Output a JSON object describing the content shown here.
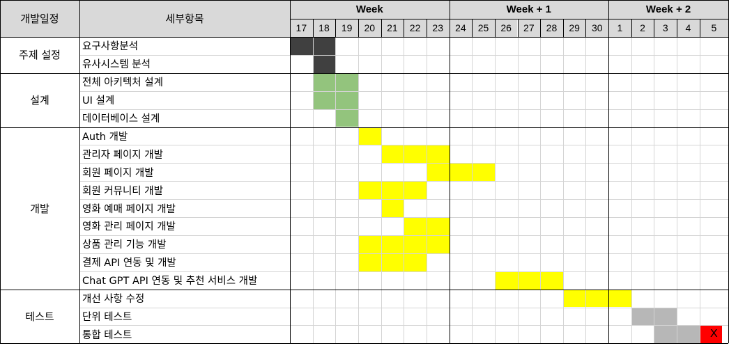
{
  "header": {
    "phase_label": "개발일정",
    "task_label": "세부항목",
    "weeks": [
      "Week",
      "Week + 1",
      "Week + 2"
    ],
    "days": [
      "17",
      "18",
      "19",
      "20",
      "21",
      "22",
      "23",
      "24",
      "25",
      "26",
      "27",
      "28",
      "29",
      "30",
      "1",
      "2",
      "3",
      "4",
      "5"
    ]
  },
  "colors": {
    "header_bg": "#d9d9d9",
    "grid": "#d4d4d4",
    "border": "#000000",
    "dark": "#404040",
    "green": "#93c47d",
    "yellow": "#ffff00",
    "gray": "#b7b7b7",
    "red": "#ff0000"
  },
  "phases": [
    {
      "label": "주제 설정",
      "tasks": [
        {
          "name": "요구사항분석",
          "bars": [
            {
              "start": 0,
              "end": 1,
              "color": "dark"
            }
          ]
        },
        {
          "name": "유사시스템 분석",
          "bars": [
            {
              "start": 1,
              "end": 1,
              "color": "dark"
            }
          ]
        }
      ]
    },
    {
      "label": "설계",
      "tasks": [
        {
          "name": "전체 아키텍처 설계",
          "bars": [
            {
              "start": 1,
              "end": 2,
              "color": "green"
            }
          ]
        },
        {
          "name": "UI 설계",
          "bars": [
            {
              "start": 1,
              "end": 2,
              "color": "green"
            }
          ]
        },
        {
          "name": "데이터베이스 설계",
          "bars": [
            {
              "start": 2,
              "end": 2,
              "color": "green"
            }
          ]
        }
      ]
    },
    {
      "label": "개발",
      "tasks": [
        {
          "name": "Auth 개발",
          "bars": [
            {
              "start": 3,
              "end": 3,
              "color": "yellow"
            }
          ]
        },
        {
          "name": "관리자 페이지 개발",
          "bars": [
            {
              "start": 4,
              "end": 6,
              "color": "yellow"
            }
          ]
        },
        {
          "name": "회원 페이지 개발",
          "bars": [
            {
              "start": 6,
              "end": 8,
              "color": "yellow"
            }
          ]
        },
        {
          "name": "회원 커뮤니티 개발",
          "bars": [
            {
              "start": 3,
              "end": 5,
              "color": "yellow"
            }
          ]
        },
        {
          "name": "영화 예매 페이지 개발",
          "bars": [
            {
              "start": 4,
              "end": 4,
              "color": "yellow"
            }
          ]
        },
        {
          "name": "영화 관리 페이지 개발",
          "bars": [
            {
              "start": 5,
              "end": 6,
              "color": "yellow"
            }
          ]
        },
        {
          "name": "상품 관리 기능 개발",
          "bars": [
            {
              "start": 3,
              "end": 6,
              "color": "yellow"
            }
          ]
        },
        {
          "name": "결제 API 연동 및 개발",
          "bars": [
            {
              "start": 3,
              "end": 5,
              "color": "yellow"
            }
          ]
        },
        {
          "name": "Chat GPT API 연동 및 추천 서비스 개발",
          "bars": [
            {
              "start": 9,
              "end": 11,
              "color": "yellow"
            }
          ]
        }
      ]
    },
    {
      "label": "테스트",
      "tasks": [
        {
          "name": "개선 사항 수정",
          "bars": [
            {
              "start": 12,
              "end": 14,
              "color": "yellow"
            }
          ]
        },
        {
          "name": "단위 테스트",
          "bars": [
            {
              "start": 15,
              "end": 16,
              "color": "gray"
            }
          ]
        },
        {
          "name": "통합 테스트",
          "bars": [
            {
              "start": 16,
              "end": 17,
              "color": "gray"
            },
            {
              "start": 18,
              "end": 18,
              "color": "red"
            }
          ],
          "marker": {
            "day": 18,
            "label": "X"
          }
        }
      ]
    }
  ]
}
